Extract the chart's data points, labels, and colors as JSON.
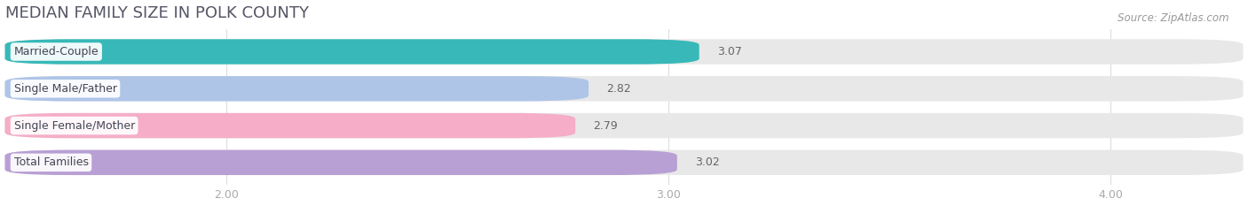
{
  "title": "MEDIAN FAMILY SIZE IN POLK COUNTY",
  "source": "Source: ZipAtlas.com",
  "categories": [
    "Married-Couple",
    "Single Male/Father",
    "Single Female/Mother",
    "Total Families"
  ],
  "values": [
    3.07,
    2.82,
    2.79,
    3.02
  ],
  "bar_colors": [
    "#38b8b8",
    "#afc5e8",
    "#f5adc8",
    "#b89fd4"
  ],
  "background_color": "#ffffff",
  "bar_bg_color": "#e8e8e8",
  "xlim_min": 1.5,
  "xlim_max": 4.3,
  "xstart": 1.5,
  "xticks": [
    2.0,
    3.0,
    4.0
  ],
  "xtick_labels": [
    "2.00",
    "3.00",
    "4.00"
  ],
  "label_fontsize": 9,
  "value_fontsize": 9,
  "title_fontsize": 13,
  "source_fontsize": 8.5,
  "title_color": "#555566",
  "tick_color": "#aaaaaa",
  "value_color": "#666666"
}
